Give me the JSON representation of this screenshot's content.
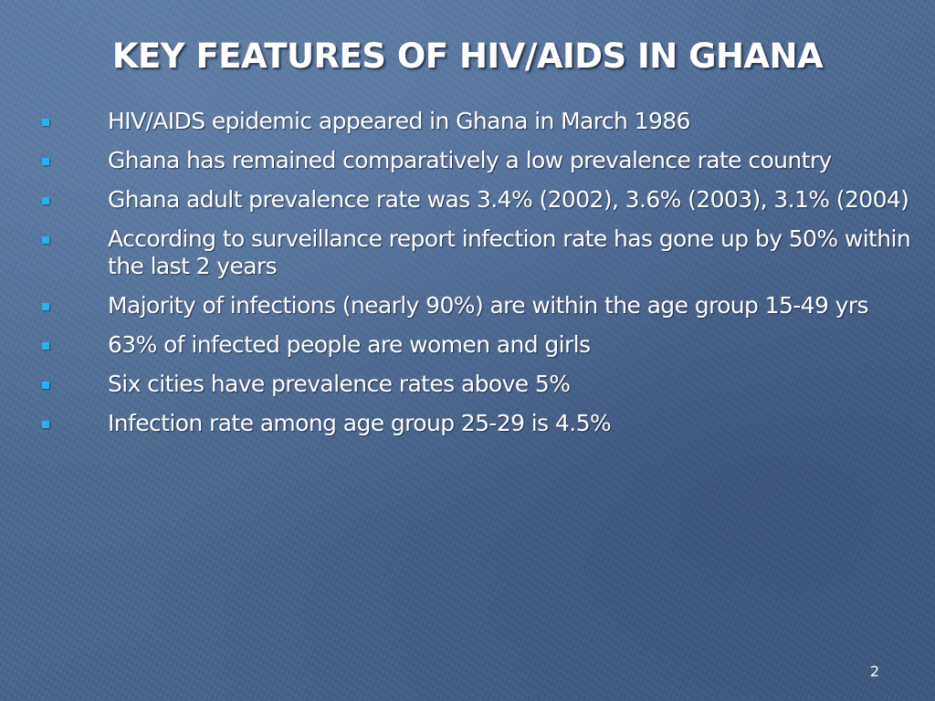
{
  "slide": {
    "title": "KEY FEATURES OF HIV/AIDS IN GHANA",
    "bullets": [
      "HIV/AIDS epidemic appeared in Ghana in March 1986",
      "Ghana has remained comparatively a low prevalence rate country",
      "Ghana adult prevalence rate was 3.4% (2002), 3.6% (2003), 3.1% (2004)",
      "According to surveillance report infection rate has gone up by 50% within the last 2 years",
      "Majority of infections (nearly 90%) are within the age group 15-49 yrs",
      "63% of infected people are women and girls",
      "Six cities have prevalence rates above 5%",
      "Infection rate among age group 25-29 is 4.5%"
    ],
    "page_number": "2",
    "colors": {
      "background": "#4a6a94",
      "text": "#ffffff",
      "bullet": "#23b4f0"
    }
  }
}
